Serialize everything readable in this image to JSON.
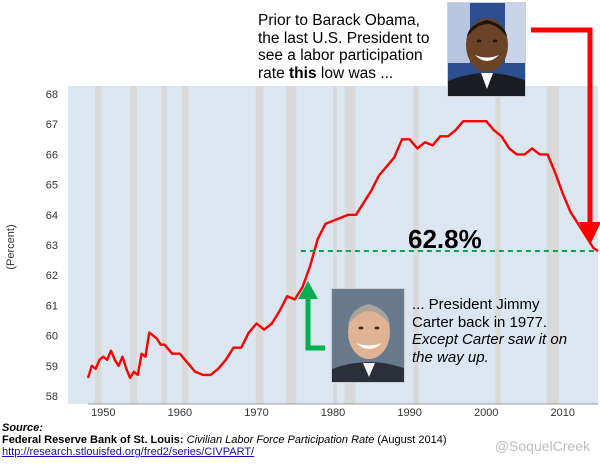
{
  "annotations": {
    "top_note_line1": "Prior to Barack Obama,",
    "top_note_line2": "the last U.S. President to",
    "top_note_line3": "see a labor participation",
    "top_note_line4_pre": "rate ",
    "top_note_line4_bold": "this",
    "top_note_line4_post": " low was ...",
    "value_label": "62.8%",
    "bottom_note_line1": "... President Jimmy",
    "bottom_note_line2": "Carter back in 1977.",
    "bottom_note_line3": "Except Carter saw it on",
    "bottom_note_line4": "the way up."
  },
  "source": {
    "heading": "Source:",
    "publisher": "Federal Reserve Bank of St. Louis:",
    "title": "Civilian Labor Force Participation Rate",
    "date": "(August 2014)",
    "url": "http://research.stlouisfed.org/fred2/series/CIVPART/"
  },
  "credit": "@SoquelCreek",
  "colors": {
    "line": "#ff0000",
    "recession_band": "#d9d9d9",
    "plot_background": "#dce6f1",
    "reference_line": "#00a550",
    "arrow_red": "#ff0000",
    "arrow_green": "#00b050"
  },
  "icons": {
    "top_portrait": "portrait-photo-obama",
    "bottom_portrait": "portrait-photo-carter"
  },
  "chart_data": {
    "type": "line",
    "title": "",
    "xlabel": "",
    "ylabel": "(Percent)",
    "xlim": [
      1948,
      2014.6
    ],
    "ylim": [
      58,
      68
    ],
    "x_ticks": [
      1950,
      1960,
      1970,
      1980,
      1990,
      2000,
      2010
    ],
    "y_ticks": [
      58,
      59,
      60,
      61,
      62,
      63,
      64,
      65,
      66,
      67,
      68
    ],
    "grid": false,
    "reference_line": {
      "y": 62.8,
      "x_start": 1975.8,
      "x_end": 2014.6,
      "label": "62.8%"
    },
    "recessions": [
      [
        1948.9,
        1949.8
      ],
      [
        1953.5,
        1954.4
      ],
      [
        1957.6,
        1958.3
      ],
      [
        1960.3,
        1961.1
      ],
      [
        1969.9,
        1970.9
      ],
      [
        1973.9,
        1975.2
      ],
      [
        1980.0,
        1980.5
      ],
      [
        1981.5,
        1982.9
      ],
      [
        1990.5,
        1991.2
      ],
      [
        2001.2,
        2001.9
      ],
      [
        2007.9,
        2009.5
      ]
    ],
    "series": [
      {
        "x": [
          1948.0,
          1948.5,
          1949.0,
          1949.5,
          1950.0,
          1950.5,
          1951.0,
          1951.5,
          1952.0,
          1952.5,
          1953.0,
          1953.5,
          1954.0,
          1954.5,
          1955.0,
          1955.5,
          1956.0,
          1956.5,
          1957.0,
          1957.5,
          1958.0,
          1959.0,
          1960.0,
          1961.0,
          1962.0,
          1963.0,
          1964.0,
          1965.0,
          1966.0,
          1967.0,
          1968.0,
          1969.0,
          1970.0,
          1971.0,
          1972.0,
          1973.0,
          1974.0,
          1975.0,
          1976.0,
          1977.0,
          1978.0,
          1979.0,
          1980.0,
          1981.0,
          1982.0,
          1983.0,
          1984.0,
          1985.0,
          1986.0,
          1987.0,
          1988.0,
          1989.0,
          1990.0,
          1991.0,
          1992.0,
          1993.0,
          1994.0,
          1995.0,
          1996.0,
          1997.0,
          1998.0,
          1999.0,
          2000.0,
          2001.0,
          2002.0,
          2003.0,
          2004.0,
          2005.0,
          2006.0,
          2007.0,
          2008.0,
          2009.0,
          2010.0,
          2011.0,
          2012.0,
          2013.0,
          2014.0,
          2014.6
        ],
        "values": [
          58.6,
          59.0,
          58.9,
          59.2,
          59.3,
          59.2,
          59.5,
          59.2,
          59.0,
          59.3,
          58.9,
          58.6,
          58.8,
          58.7,
          59.4,
          59.3,
          60.1,
          60.0,
          59.9,
          59.7,
          59.7,
          59.4,
          59.4,
          59.1,
          58.8,
          58.7,
          58.7,
          58.9,
          59.2,
          59.6,
          59.6,
          60.1,
          60.4,
          60.2,
          60.4,
          60.8,
          61.3,
          61.2,
          61.6,
          62.3,
          63.2,
          63.7,
          63.8,
          63.9,
          64.0,
          64.0,
          64.4,
          64.8,
          65.3,
          65.6,
          65.9,
          66.5,
          66.5,
          66.2,
          66.4,
          66.3,
          66.6,
          66.6,
          66.8,
          67.1,
          67.1,
          67.1,
          67.1,
          66.8,
          66.6,
          66.2,
          66.0,
          66.0,
          66.2,
          66.0,
          66.0,
          65.4,
          64.7,
          64.1,
          63.7,
          63.3,
          62.9,
          62.8
        ]
      }
    ]
  }
}
